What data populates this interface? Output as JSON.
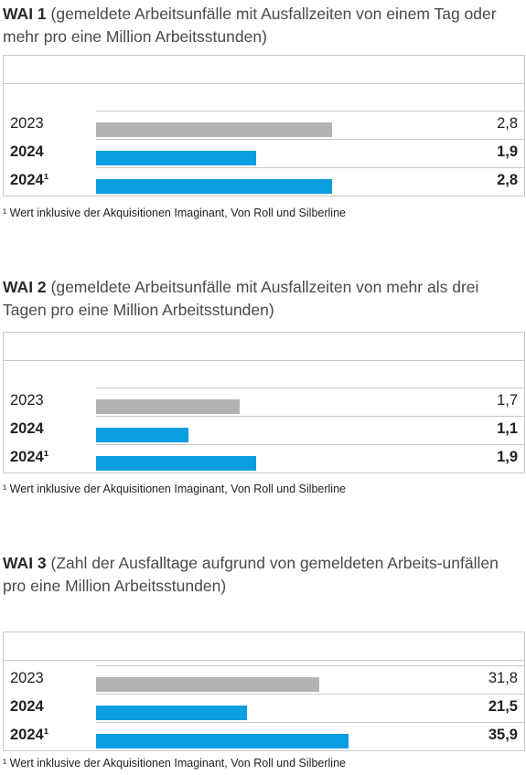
{
  "footnote": "¹ Wert inklusive der Akquisitionen Imaginant, Von Roll und Silberline",
  "colors": {
    "prior": "#b3b3b3",
    "current": "#0a9ddf"
  },
  "chart_data": [
    {
      "type": "bar",
      "orientation": "horizontal",
      "title_bold": "WAI 1",
      "title_rest": " (gemeldete Arbeitsunfälle mit Ausfallzeiten von einem Tag oder mehr pro eine Million Arbeitsstunden)",
      "xlim": [
        0,
        4
      ],
      "categories": [
        "2023",
        "2024",
        "2024¹"
      ],
      "values": [
        2.8,
        1.9,
        2.8
      ],
      "value_labels": [
        "2,8",
        "1,9",
        "2,8"
      ]
    },
    {
      "type": "bar",
      "orientation": "horizontal",
      "title_bold": "WAI 2",
      "title_rest": " (gemeldete Arbeitsunfälle mit Ausfallzeiten von mehr als drei Tagen pro eine Million Arbeitsstunden)",
      "xlim": [
        0,
        4
      ],
      "categories": [
        "2023",
        "2024",
        "2024¹"
      ],
      "values": [
        1.7,
        1.1,
        1.9
      ],
      "value_labels": [
        "1,7",
        "1,1",
        "1,9"
      ]
    },
    {
      "type": "bar",
      "orientation": "horizontal",
      "title_bold": "WAI 3",
      "title_rest": " (Zahl der Ausfalltage aufgrund von gemeldeten Arbeits-unfällen pro eine Million Arbeitsstunden)",
      "xlim": [
        0,
        48
      ],
      "categories": [
        "2023",
        "2024",
        "2024¹"
      ],
      "values": [
        31.8,
        21.5,
        35.9
      ],
      "value_labels": [
        "31,8",
        "21,5",
        "35,9"
      ]
    }
  ]
}
